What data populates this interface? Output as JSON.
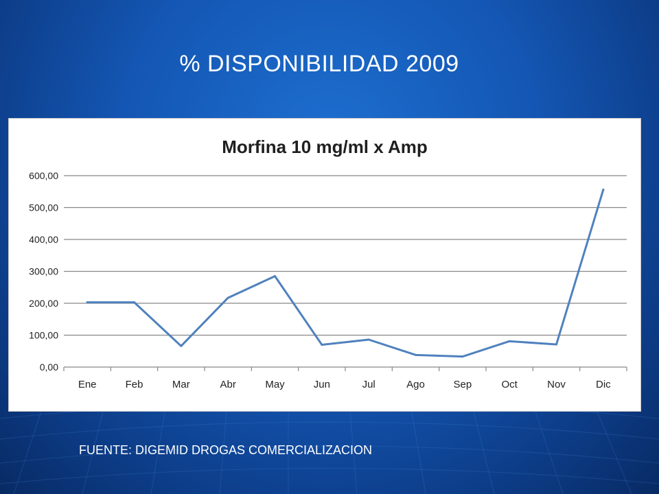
{
  "slide": {
    "title": "% DISPONIBILIDAD 2009",
    "source": "FUENTE: DIGEMID DROGAS COMERCIALIZACION"
  },
  "colors": {
    "background": "#1456b3",
    "line": "#4f81bd",
    "grid": "#878787"
  },
  "chart_data": {
    "type": "line",
    "title": "Morfina 10 mg/ml x Amp",
    "xlabel": "",
    "ylabel": "",
    "categories": [
      "Ene",
      "Feb",
      "Mar",
      "Abr",
      "May",
      "Jun",
      "Jul",
      "Ago",
      "Sep",
      "Oct",
      "Nov",
      "Dic"
    ],
    "series": [
      {
        "values": [
          203,
          203,
          66,
          217,
          285,
          70,
          86,
          38,
          33,
          81,
          71,
          556
        ]
      }
    ],
    "ylim": [
      0,
      600
    ],
    "yticks": [
      "0,00",
      "100,00",
      "200,00",
      "300,00",
      "400,00",
      "500,00",
      "600,00"
    ],
    "grid": true,
    "legend": "none"
  }
}
